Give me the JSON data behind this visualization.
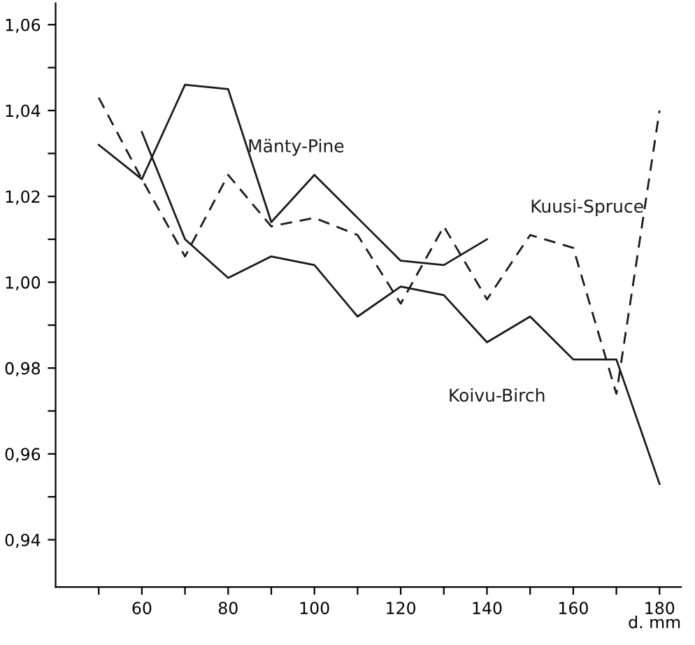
{
  "chart_data": {
    "type": "line",
    "xlabel": "d. mm",
    "x": [
      50,
      60,
      70,
      80,
      90,
      100,
      110,
      120,
      130,
      140,
      150,
      160,
      170,
      180
    ],
    "series": [
      {
        "name": "Mänty-Pine",
        "color": "#1a1a1a",
        "line_style": "solid",
        "values": [
          1.032,
          1.024,
          1.046,
          1.045,
          1.014,
          1.025,
          1.015,
          1.005,
          1.004,
          1.01,
          null,
          null,
          null,
          null
        ]
      },
      {
        "name": "Kuusi-Spruce",
        "color": "#1a1a1a",
        "line_style": "dashed",
        "values": [
          1.043,
          1.024,
          1.006,
          1.025,
          1.013,
          1.015,
          1.011,
          0.995,
          1.013,
          0.996,
          1.011,
          1.008,
          0.974,
          1.04
        ]
      },
      {
        "name": "Koivu-Birch",
        "color": "#1a1a1a",
        "line_style": "solid",
        "values": [
          null,
          1.035,
          1.01,
          1.001,
          1.006,
          1.004,
          0.992,
          0.999,
          0.997,
          0.986,
          0.992,
          0.982,
          0.982,
          0.953
        ]
      }
    ],
    "xlim": [
      40,
      185
    ],
    "ylim": [
      0.929,
      1.065
    ],
    "xticks": [
      {
        "value": 50,
        "label": null
      },
      60,
      {
        "value": 70,
        "label": null
      },
      80,
      {
        "value": 90,
        "label": null
      },
      100,
      {
        "value": 110,
        "label": null
      },
      120,
      {
        "value": 130,
        "label": null
      },
      140,
      {
        "value": 150,
        "label": null
      },
      160,
      {
        "value": 170,
        "label": null
      },
      180
    ],
    "yticks": [
      {
        "value": 0.94,
        "label": "0,94"
      },
      {
        "value": 0.95,
        "label": null
      },
      {
        "value": 0.96,
        "label": "0,96"
      },
      {
        "value": 0.97,
        "label": null
      },
      {
        "value": 0.98,
        "label": "0,98"
      },
      {
        "value": 0.99,
        "label": null
      },
      {
        "value": 1.0,
        "label": "1,00"
      },
      {
        "value": 1.01,
        "label": null
      },
      {
        "value": 1.02,
        "label": "1,02"
      },
      {
        "value": 1.03,
        "label": null
      },
      {
        "value": 1.04,
        "label": "1,04"
      },
      {
        "value": 1.05,
        "label": null
      },
      {
        "value": 1.06,
        "label": "1,06"
      }
    ],
    "grid": false,
    "legend": false,
    "marker": "none"
  }
}
